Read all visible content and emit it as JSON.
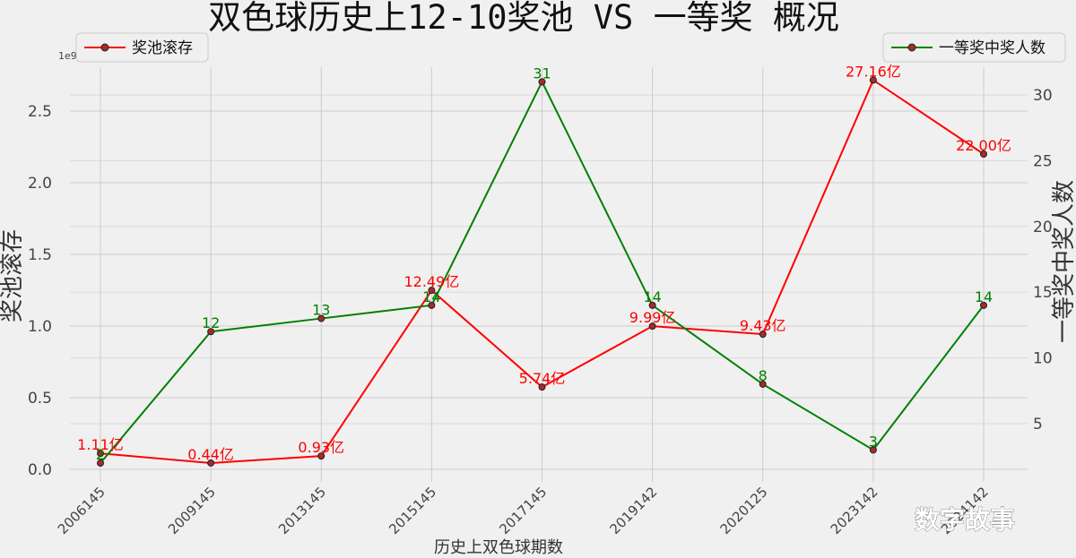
{
  "chart_data": {
    "type": "line",
    "title": "双色球历史上12-10奖池 VS 一等奖 概况",
    "xlabel": "历史上双色球期数",
    "categories": [
      "2006145",
      "2009145",
      "2013145",
      "2015145",
      "2017145",
      "2019142",
      "2020125",
      "2023142",
      "2024142"
    ],
    "y_left": {
      "label": "奖池滚存",
      "ylim": [
        0,
        2.8
      ],
      "ticks": [
        "0.0",
        "0.5",
        "1.0",
        "1.5",
        "2.0",
        "2.5"
      ],
      "exponent": "1e9"
    },
    "y_right": {
      "label": "一等奖中奖人数",
      "ylim": [
        1.4,
        32.6
      ],
      "ticks": [
        "5",
        "10",
        "15",
        "20",
        "25",
        "30"
      ]
    },
    "series": [
      {
        "name": "奖池滚存",
        "axis": "left",
        "color": "#ff0000",
        "values": [
          0.111,
          0.044,
          0.093,
          1.249,
          0.574,
          0.999,
          0.943,
          2.716,
          2.2
        ],
        "labels": [
          "1.11亿",
          "0.44亿",
          "0.93亿",
          "12.49亿",
          "5.74亿",
          "9.99亿",
          "9.43亿",
          "27.16亿",
          "22.00亿"
        ]
      },
      {
        "name": "一等奖中奖人数",
        "axis": "right",
        "color": "#008000",
        "values": [
          2,
          12,
          13,
          14,
          31,
          14,
          8,
          3,
          14
        ],
        "labels": [
          "2",
          "12",
          "13",
          "14",
          "31",
          "14",
          "8",
          "3",
          "14"
        ]
      }
    ],
    "legend": {
      "left_series": "top-left",
      "right_series": "top-right"
    },
    "grid": true
  },
  "watermark": "数字故事"
}
